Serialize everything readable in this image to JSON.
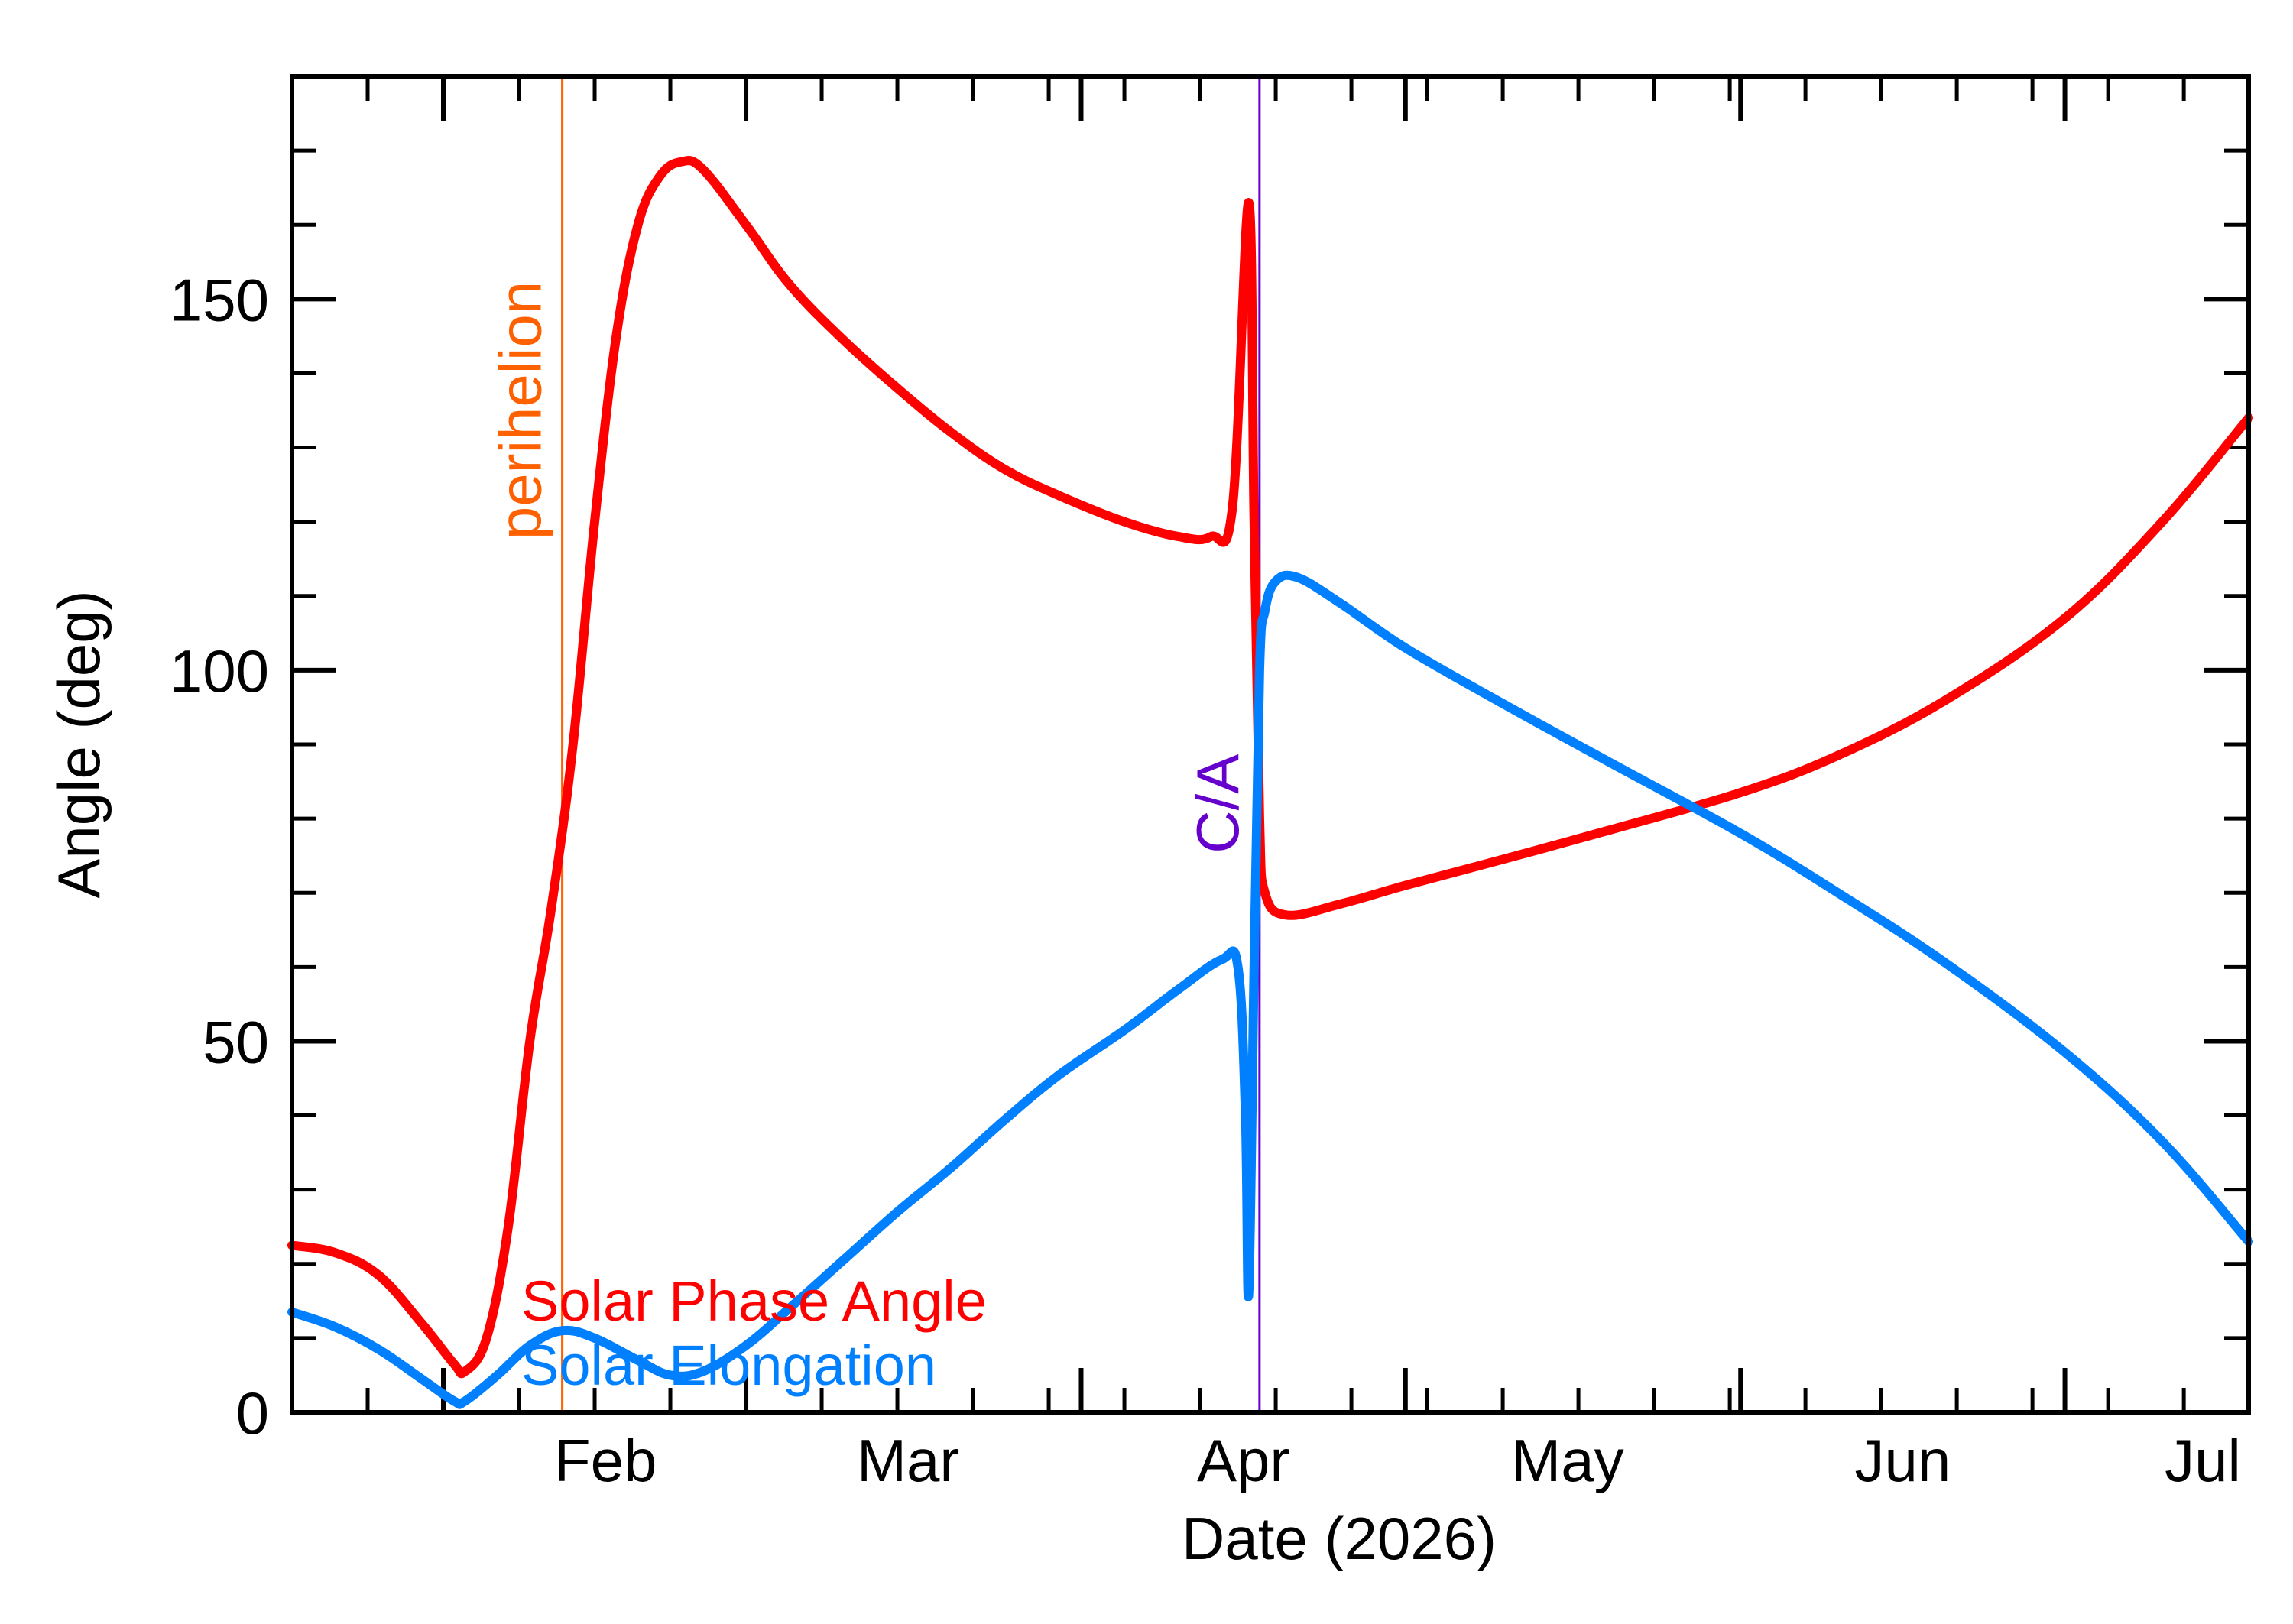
{
  "chart_data": {
    "type": "line",
    "xlabel": "Date (2026)",
    "ylabel": "Angle (deg)",
    "xlim": [
      "2026-01-18",
      "2026-07-18"
    ],
    "ylim": [
      0,
      180
    ],
    "x_ticks": [
      {
        "date": "2026-02-01",
        "label": "Feb"
      },
      {
        "date": "2026-03-01",
        "label": "Mar"
      },
      {
        "date": "2026-04-01",
        "label": "Apr"
      },
      {
        "date": "2026-05-01",
        "label": "May"
      },
      {
        "date": "2026-06-01",
        "label": "Jun"
      },
      {
        "date": "2026-07-01",
        "label": "Jul"
      }
    ],
    "y_ticks": [
      {
        "value": 0,
        "label": "0"
      },
      {
        "value": 50,
        "label": "50"
      },
      {
        "value": 100,
        "label": "100"
      },
      {
        "value": 150,
        "label": "150"
      }
    ],
    "y_minor_step": 10,
    "x_minor_step_days": 7,
    "grid": false,
    "markers": [
      {
        "label": "perihelion",
        "date": "2026-02-12",
        "color": "#ff6000"
      },
      {
        "label": "C/A",
        "date": "2026-04-17.5",
        "color": "#6600cc"
      }
    ],
    "series": [
      {
        "name": "Solar Phase Angle",
        "color": "#ff0000",
        "points": [
          [
            "2026-01-18",
            22.5
          ],
          [
            "2026-01-22",
            21.5
          ],
          [
            "2026-01-26",
            18.5
          ],
          [
            "2026-01-30",
            12
          ],
          [
            "2026-02-02",
            6.5
          ],
          [
            "2026-02-03",
            5.5
          ],
          [
            "2026-02-05",
            10
          ],
          [
            "2026-02-07",
            25
          ],
          [
            "2026-02-09",
            50
          ],
          [
            "2026-02-11",
            68
          ],
          [
            "2026-02-13",
            90
          ],
          [
            "2026-02-15",
            120
          ],
          [
            "2026-02-17",
            145
          ],
          [
            "2026-02-19",
            160
          ],
          [
            "2026-02-21",
            166.5
          ],
          [
            "2026-02-23",
            168.5
          ],
          [
            "2026-02-25",
            167.5
          ],
          [
            "2026-03-01",
            160
          ],
          [
            "2026-03-05",
            152
          ],
          [
            "2026-03-10",
            144.5
          ],
          [
            "2026-03-15",
            138
          ],
          [
            "2026-03-20",
            132
          ],
          [
            "2026-03-25",
            127
          ],
          [
            "2026-03-30",
            123.5
          ],
          [
            "2026-04-05",
            120
          ],
          [
            "2026-04-10",
            118
          ],
          [
            "2026-04-13",
            118
          ],
          [
            "2026-04-15",
            122
          ],
          [
            "2026-04-16.5",
            163
          ],
          [
            "2026-04-17",
            120
          ],
          [
            "2026-04-17.5",
            80
          ],
          [
            "2026-04-18",
            70
          ],
          [
            "2026-04-20",
            67
          ],
          [
            "2026-04-25",
            68.5
          ],
          [
            "2026-05-01",
            71
          ],
          [
            "2026-05-10",
            74.5
          ],
          [
            "2026-05-20",
            78.5
          ],
          [
            "2026-06-01",
            83.5
          ],
          [
            "2026-06-10",
            88.5
          ],
          [
            "2026-06-20",
            96
          ],
          [
            "2026-07-01",
            107
          ],
          [
            "2026-07-10",
            120
          ],
          [
            "2026-07-18",
            134
          ]
        ]
      },
      {
        "name": "Solar Elongation",
        "color": "#0080ff",
        "points": [
          [
            "2026-01-18",
            13.5
          ],
          [
            "2026-01-22",
            11.5
          ],
          [
            "2026-01-26",
            8.5
          ],
          [
            "2026-01-30",
            4.5
          ],
          [
            "2026-02-02",
            1.5
          ],
          [
            "2026-02-03",
            1.5
          ],
          [
            "2026-02-06",
            5
          ],
          [
            "2026-02-09",
            9
          ],
          [
            "2026-02-12",
            11
          ],
          [
            "2026-02-15",
            10
          ],
          [
            "2026-02-19",
            7
          ],
          [
            "2026-02-22",
            5
          ],
          [
            "2026-02-25",
            5.5
          ],
          [
            "2026-03-01",
            9
          ],
          [
            "2026-03-05",
            14
          ],
          [
            "2026-03-10",
            20.5
          ],
          [
            "2026-03-15",
            27
          ],
          [
            "2026-03-20",
            33
          ],
          [
            "2026-03-25",
            39.5
          ],
          [
            "2026-03-30",
            45.5
          ],
          [
            "2026-04-05",
            51.5
          ],
          [
            "2026-04-10",
            57
          ],
          [
            "2026-04-14",
            61
          ],
          [
            "2026-04-15.5",
            60
          ],
          [
            "2026-04-16.2",
            40
          ],
          [
            "2026-04-16.5",
            16
          ],
          [
            "2026-04-17",
            60
          ],
          [
            "2026-04-17.5",
            100
          ],
          [
            "2026-04-18",
            108
          ],
          [
            "2026-04-19",
            112
          ],
          [
            "2026-04-21",
            112.5
          ],
          [
            "2026-04-25",
            109
          ],
          [
            "2026-05-01",
            103
          ],
          [
            "2026-05-10",
            95.5
          ],
          [
            "2026-05-20",
            87.5
          ],
          [
            "2026-06-01",
            78
          ],
          [
            "2026-06-10",
            70
          ],
          [
            "2026-06-20",
            60.5
          ],
          [
            "2026-07-01",
            48.5
          ],
          [
            "2026-07-10",
            36.5
          ],
          [
            "2026-07-18",
            23
          ]
        ]
      }
    ]
  }
}
